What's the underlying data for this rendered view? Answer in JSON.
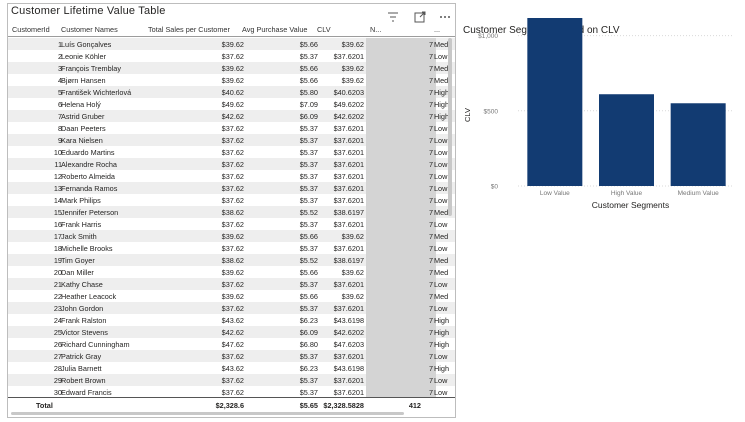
{
  "table": {
    "title": "Customer Lifetime Value Table",
    "columns": [
      "CustomerId",
      "Customer Names",
      "Total Sales per Customer",
      "Avg Purchase Value",
      "CLV",
      "N...",
      "..."
    ],
    "rows": [
      {
        "id": "1",
        "name": "Luís Gonçalves",
        "sales": "$39.62",
        "avg": "$5.66",
        "clv": "$39.62",
        "num": "7",
        "seg": "Med"
      },
      {
        "id": "2",
        "name": "Leonie Köhler",
        "sales": "$37.62",
        "avg": "$5.37",
        "clv": "$37.6201",
        "num": "7",
        "seg": "Low"
      },
      {
        "id": "3",
        "name": "François Tremblay",
        "sales": "$39.62",
        "avg": "$5.66",
        "clv": "$39.62",
        "num": "7",
        "seg": "Med"
      },
      {
        "id": "4",
        "name": "Bjørn Hansen",
        "sales": "$39.62",
        "avg": "$5.66",
        "clv": "$39.62",
        "num": "7",
        "seg": "Med"
      },
      {
        "id": "5",
        "name": "František Wichterlová",
        "sales": "$40.62",
        "avg": "$5.80",
        "clv": "$40.6203",
        "num": "7",
        "seg": "High"
      },
      {
        "id": "6",
        "name": "Helena Holý",
        "sales": "$49.62",
        "avg": "$7.09",
        "clv": "$49.6202",
        "num": "7",
        "seg": "High"
      },
      {
        "id": "7",
        "name": "Astrid Gruber",
        "sales": "$42.62",
        "avg": "$6.09",
        "clv": "$42.6202",
        "num": "7",
        "seg": "High"
      },
      {
        "id": "8",
        "name": "Daan Peeters",
        "sales": "$37.62",
        "avg": "$5.37",
        "clv": "$37.6201",
        "num": "7",
        "seg": "Low"
      },
      {
        "id": "9",
        "name": "Kara Nielsen",
        "sales": "$37.62",
        "avg": "$5.37",
        "clv": "$37.6201",
        "num": "7",
        "seg": "Low"
      },
      {
        "id": "10",
        "name": "Eduardo Martins",
        "sales": "$37.62",
        "avg": "$5.37",
        "clv": "$37.6201",
        "num": "7",
        "seg": "Low"
      },
      {
        "id": "11",
        "name": "Alexandre Rocha",
        "sales": "$37.62",
        "avg": "$5.37",
        "clv": "$37.6201",
        "num": "7",
        "seg": "Low"
      },
      {
        "id": "12",
        "name": "Roberto Almeida",
        "sales": "$37.62",
        "avg": "$5.37",
        "clv": "$37.6201",
        "num": "7",
        "seg": "Low"
      },
      {
        "id": "13",
        "name": "Fernanda Ramos",
        "sales": "$37.62",
        "avg": "$5.37",
        "clv": "$37.6201",
        "num": "7",
        "seg": "Low"
      },
      {
        "id": "14",
        "name": "Mark Philips",
        "sales": "$37.62",
        "avg": "$5.37",
        "clv": "$37.6201",
        "num": "7",
        "seg": "Low"
      },
      {
        "id": "15",
        "name": "Jennifer Peterson",
        "sales": "$38.62",
        "avg": "$5.52",
        "clv": "$38.6197",
        "num": "7",
        "seg": "Med"
      },
      {
        "id": "16",
        "name": "Frank Harris",
        "sales": "$37.62",
        "avg": "$5.37",
        "clv": "$37.6201",
        "num": "7",
        "seg": "Low"
      },
      {
        "id": "17",
        "name": "Jack Smith",
        "sales": "$39.62",
        "avg": "$5.66",
        "clv": "$39.62",
        "num": "7",
        "seg": "Med"
      },
      {
        "id": "18",
        "name": "Michelle Brooks",
        "sales": "$37.62",
        "avg": "$5.37",
        "clv": "$37.6201",
        "num": "7",
        "seg": "Low"
      },
      {
        "id": "19",
        "name": "Tim Goyer",
        "sales": "$38.62",
        "avg": "$5.52",
        "clv": "$38.6197",
        "num": "7",
        "seg": "Med"
      },
      {
        "id": "20",
        "name": "Dan Miller",
        "sales": "$39.62",
        "avg": "$5.66",
        "clv": "$39.62",
        "num": "7",
        "seg": "Med"
      },
      {
        "id": "21",
        "name": "Kathy Chase",
        "sales": "$37.62",
        "avg": "$5.37",
        "clv": "$37.6201",
        "num": "7",
        "seg": "Low"
      },
      {
        "id": "22",
        "name": "Heather Leacock",
        "sales": "$39.62",
        "avg": "$5.66",
        "clv": "$39.62",
        "num": "7",
        "seg": "Med"
      },
      {
        "id": "23",
        "name": "John Gordon",
        "sales": "$37.62",
        "avg": "$5.37",
        "clv": "$37.6201",
        "num": "7",
        "seg": "Low"
      },
      {
        "id": "24",
        "name": "Frank Ralston",
        "sales": "$43.62",
        "avg": "$6.23",
        "clv": "$43.6198",
        "num": "7",
        "seg": "High"
      },
      {
        "id": "25",
        "name": "Victor Stevens",
        "sales": "$42.62",
        "avg": "$6.09",
        "clv": "$42.6202",
        "num": "7",
        "seg": "High"
      },
      {
        "id": "26",
        "name": "Richard Cunningham",
        "sales": "$47.62",
        "avg": "$6.80",
        "clv": "$47.6203",
        "num": "7",
        "seg": "High"
      },
      {
        "id": "27",
        "name": "Patrick Gray",
        "sales": "$37.62",
        "avg": "$5.37",
        "clv": "$37.6201",
        "num": "7",
        "seg": "Low"
      },
      {
        "id": "28",
        "name": "Julia Barnett",
        "sales": "$43.62",
        "avg": "$6.23",
        "clv": "$43.6198",
        "num": "7",
        "seg": "High"
      },
      {
        "id": "29",
        "name": "Robert Brown",
        "sales": "$37.62",
        "avg": "$5.37",
        "clv": "$37.6201",
        "num": "7",
        "seg": "Low"
      },
      {
        "id": "30",
        "name": "Edward Francis",
        "sales": "$37.62",
        "avg": "$5.37",
        "clv": "$37.6201",
        "num": "7",
        "seg": "Low"
      }
    ],
    "total": {
      "label": "Total",
      "sales": "$2,328.6",
      "avg": "$5.65",
      "clv": "$2,328.5828",
      "num": "412"
    }
  },
  "toolbar_icons": [
    "filter-icon",
    "focus-mode-icon",
    "more-options-icon"
  ],
  "colors": {
    "bar": "#123b72",
    "grid": "#d9d9d9",
    "row_alt": "#eeeeee",
    "clv_highlight": "#d4d4d4"
  },
  "chart_data": {
    "type": "bar",
    "title": "Customer Segments based on CLV",
    "xlabel": "Customer Segments",
    "ylabel": "CLV",
    "categories": [
      "Low Value",
      "High Value",
      "Medium Value"
    ],
    "values": [
      1170,
      610,
      550
    ],
    "ylim": [
      0,
      1150
    ],
    "yticks": [
      0,
      500,
      1000
    ],
    "ytick_labels": [
      "$0",
      "$500",
      "$1,000"
    ],
    "grid": true,
    "legend": "none"
  }
}
